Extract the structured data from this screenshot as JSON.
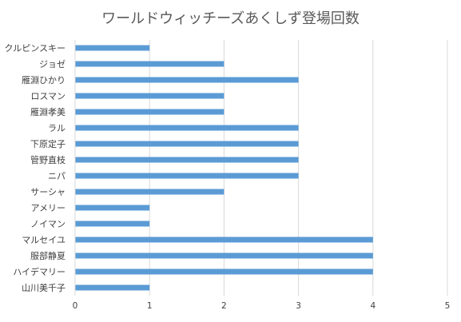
{
  "chart_data": {
    "type": "bar",
    "orientation": "horizontal",
    "title": "ワールドウィッチーズあくしず登場回数",
    "categories": [
      "クルピンスキー",
      "ジョゼ",
      "雁淵ひかり",
      "ロスマン",
      "雁淵孝美",
      "ラル",
      "下原定子",
      "管野直枝",
      "ニパ",
      "サーシャ",
      "アメリー",
      "ノイマン",
      "マルセイユ",
      "服部静夏",
      "ハイデマリー",
      "山川美千子"
    ],
    "values": [
      1,
      2,
      3,
      2,
      2,
      3,
      3,
      3,
      3,
      2,
      1,
      1,
      4,
      4,
      4,
      1
    ],
    "xlim": [
      0,
      5
    ],
    "xticks": [
      0,
      1,
      2,
      3,
      4,
      5
    ],
    "xlabel": "",
    "ylabel": "",
    "grid": true,
    "legend": "none",
    "bar_color": "#5B9BD5",
    "grid_color": "#D9D9D9"
  }
}
